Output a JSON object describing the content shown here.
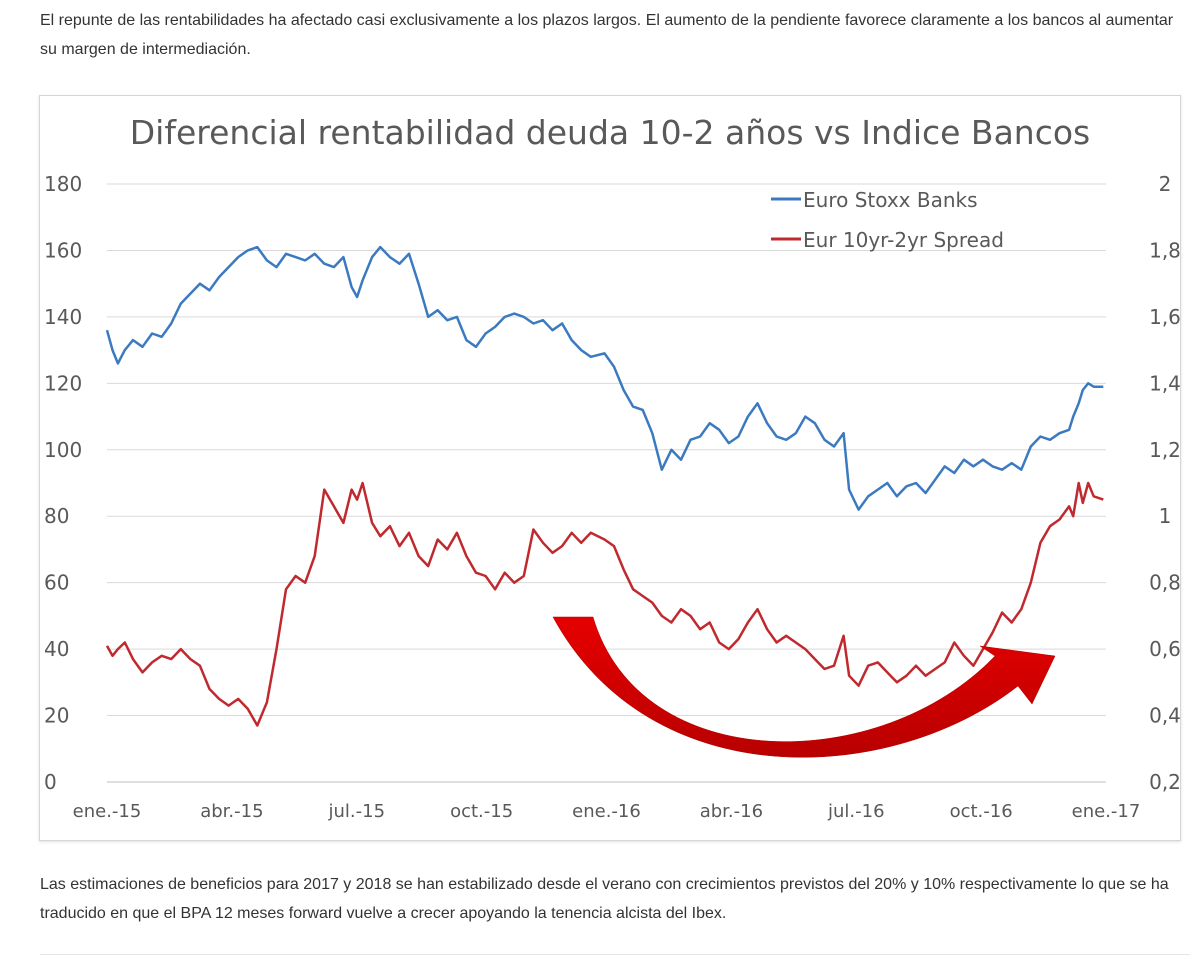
{
  "article": {
    "paragraph_1": "El repunte de las rentabilidades ha afectado casi exclusivamente a los plazos largos. El aumento de la pendiente favorece claramente a los bancos al aumentar su margen de intermediación.",
    "paragraph_2": "Las estimaciones de beneficios para 2017 y 2018 se han estabilizado desde el verano con crecimientos previstos del 20% y 10% respectivamente lo que se ha traducido en que el BPA 12 meses forward vuelve a crecer apoyando la tenencia alcista del Ibex."
  },
  "chart_data": {
    "type": "line",
    "title": "Diferencial rentabilidad deuda 10-2 años vs Indice Bancos",
    "x_tick_labels": [
      "ene.-15",
      "abr.-15",
      "jul.-15",
      "oct.-15",
      "ene.-16",
      "abr.-16",
      "jul.-16",
      "oct.-16",
      "ene.-17"
    ],
    "y_left": {
      "ylim": [
        0,
        180
      ],
      "ticks": [
        "180",
        "160",
        "140",
        "120",
        "100",
        "80",
        "60",
        "40",
        "20",
        "0"
      ]
    },
    "y_right": {
      "ylim": [
        0.2,
        2
      ],
      "ticks": [
        "2",
        "1,8",
        "1,6",
        "1,4",
        "1,2",
        "1",
        "0,8",
        "0,6",
        "0,4",
        "0,2"
      ]
    },
    "grid": "horizontal",
    "legend_placement": "top-right",
    "arrow_annotation": {
      "color": "#e60000",
      "direction": "curved-up-right"
    },
    "series": [
      {
        "name": "Euro Stoxx Banks",
        "axis": "left",
        "color": "#3c7ac0",
        "points": [
          [
            "2015-01-01",
            136
          ],
          [
            "2015-01-05",
            130
          ],
          [
            "2015-01-09",
            126
          ],
          [
            "2015-01-14",
            130
          ],
          [
            "2015-01-20",
            133
          ],
          [
            "2015-01-27",
            131
          ],
          [
            "2015-02-03",
            135
          ],
          [
            "2015-02-10",
            134
          ],
          [
            "2015-02-17",
            138
          ],
          [
            "2015-02-24",
            144
          ],
          [
            "2015-03-03",
            147
          ],
          [
            "2015-03-10",
            150
          ],
          [
            "2015-03-17",
            148
          ],
          [
            "2015-03-24",
            152
          ],
          [
            "2015-03-31",
            155
          ],
          [
            "2015-04-07",
            158
          ],
          [
            "2015-04-14",
            160
          ],
          [
            "2015-04-21",
            161
          ],
          [
            "2015-04-28",
            157
          ],
          [
            "2015-05-05",
            155
          ],
          [
            "2015-05-12",
            159
          ],
          [
            "2015-05-19",
            158
          ],
          [
            "2015-05-26",
            157
          ],
          [
            "2015-06-02",
            159
          ],
          [
            "2015-06-09",
            156
          ],
          [
            "2015-06-16",
            155
          ],
          [
            "2015-06-23",
            158
          ],
          [
            "2015-06-29",
            149
          ],
          [
            "2015-07-03",
            146
          ],
          [
            "2015-07-07",
            151
          ],
          [
            "2015-07-14",
            158
          ],
          [
            "2015-07-20",
            161
          ],
          [
            "2015-07-27",
            158
          ],
          [
            "2015-08-03",
            156
          ],
          [
            "2015-08-10",
            159
          ],
          [
            "2015-08-17",
            150
          ],
          [
            "2015-08-24",
            140
          ],
          [
            "2015-08-31",
            142
          ],
          [
            "2015-09-07",
            139
          ],
          [
            "2015-09-14",
            140
          ],
          [
            "2015-09-21",
            133
          ],
          [
            "2015-09-28",
            131
          ],
          [
            "2015-10-05",
            135
          ],
          [
            "2015-10-12",
            137
          ],
          [
            "2015-10-19",
            140
          ],
          [
            "2015-10-26",
            141
          ],
          [
            "2015-11-02",
            140
          ],
          [
            "2015-11-09",
            138
          ],
          [
            "2015-11-16",
            139
          ],
          [
            "2015-11-23",
            136
          ],
          [
            "2015-11-30",
            138
          ],
          [
            "2015-12-07",
            133
          ],
          [
            "2015-12-14",
            130
          ],
          [
            "2015-12-21",
            128
          ],
          [
            "2015-12-31",
            129
          ],
          [
            "2016-01-07",
            125
          ],
          [
            "2016-01-14",
            118
          ],
          [
            "2016-01-21",
            113
          ],
          [
            "2016-01-28",
            112
          ],
          [
            "2016-02-04",
            105
          ],
          [
            "2016-02-11",
            94
          ],
          [
            "2016-02-18",
            100
          ],
          [
            "2016-02-25",
            97
          ],
          [
            "2016-03-03",
            103
          ],
          [
            "2016-03-10",
            104
          ],
          [
            "2016-03-17",
            108
          ],
          [
            "2016-03-24",
            106
          ],
          [
            "2016-03-31",
            102
          ],
          [
            "2016-04-07",
            104
          ],
          [
            "2016-04-14",
            110
          ],
          [
            "2016-04-21",
            114
          ],
          [
            "2016-04-28",
            108
          ],
          [
            "2016-05-05",
            104
          ],
          [
            "2016-05-12",
            103
          ],
          [
            "2016-05-19",
            105
          ],
          [
            "2016-05-26",
            110
          ],
          [
            "2016-06-02",
            108
          ],
          [
            "2016-06-09",
            103
          ],
          [
            "2016-06-16",
            101
          ],
          [
            "2016-06-23",
            105
          ],
          [
            "2016-06-27",
            88
          ],
          [
            "2016-07-04",
            82
          ],
          [
            "2016-07-11",
            86
          ],
          [
            "2016-07-18",
            88
          ],
          [
            "2016-07-25",
            90
          ],
          [
            "2016-08-01",
            86
          ],
          [
            "2016-08-08",
            89
          ],
          [
            "2016-08-15",
            90
          ],
          [
            "2016-08-22",
            87
          ],
          [
            "2016-08-29",
            91
          ],
          [
            "2016-09-05",
            95
          ],
          [
            "2016-09-12",
            93
          ],
          [
            "2016-09-19",
            97
          ],
          [
            "2016-09-26",
            95
          ],
          [
            "2016-10-03",
            97
          ],
          [
            "2016-10-10",
            95
          ],
          [
            "2016-10-17",
            94
          ],
          [
            "2016-10-24",
            96
          ],
          [
            "2016-10-31",
            94
          ],
          [
            "2016-11-07",
            101
          ],
          [
            "2016-11-14",
            104
          ],
          [
            "2016-11-21",
            103
          ],
          [
            "2016-11-28",
            105
          ],
          [
            "2016-12-05",
            106
          ],
          [
            "2016-12-08",
            110
          ],
          [
            "2016-12-12",
            114
          ],
          [
            "2016-12-15",
            118
          ],
          [
            "2016-12-19",
            120
          ],
          [
            "2016-12-23",
            119
          ],
          [
            "2016-12-30",
            119
          ]
        ]
      },
      {
        "name": "Eur 10yr-2yr Spread",
        "axis": "right",
        "color": "#c0292e",
        "points": [
          [
            "2015-01-01",
            0.61
          ],
          [
            "2015-01-05",
            0.58
          ],
          [
            "2015-01-09",
            0.6
          ],
          [
            "2015-01-14",
            0.62
          ],
          [
            "2015-01-20",
            0.57
          ],
          [
            "2015-01-27",
            0.53
          ],
          [
            "2015-02-03",
            0.56
          ],
          [
            "2015-02-10",
            0.58
          ],
          [
            "2015-02-17",
            0.57
          ],
          [
            "2015-02-24",
            0.6
          ],
          [
            "2015-03-03",
            0.57
          ],
          [
            "2015-03-10",
            0.55
          ],
          [
            "2015-03-17",
            0.48
          ],
          [
            "2015-03-24",
            0.45
          ],
          [
            "2015-03-31",
            0.43
          ],
          [
            "2015-04-07",
            0.45
          ],
          [
            "2015-04-14",
            0.42
          ],
          [
            "2015-04-21",
            0.37
          ],
          [
            "2015-04-28",
            0.44
          ],
          [
            "2015-05-05",
            0.6
          ],
          [
            "2015-05-12",
            0.78
          ],
          [
            "2015-05-19",
            0.82
          ],
          [
            "2015-05-26",
            0.8
          ],
          [
            "2015-06-02",
            0.88
          ],
          [
            "2015-06-09",
            1.08
          ],
          [
            "2015-06-16",
            1.03
          ],
          [
            "2015-06-23",
            0.98
          ],
          [
            "2015-06-29",
            1.08
          ],
          [
            "2015-07-03",
            1.05
          ],
          [
            "2015-07-07",
            1.1
          ],
          [
            "2015-07-14",
            0.98
          ],
          [
            "2015-07-20",
            0.94
          ],
          [
            "2015-07-27",
            0.97
          ],
          [
            "2015-08-03",
            0.91
          ],
          [
            "2015-08-10",
            0.95
          ],
          [
            "2015-08-17",
            0.88
          ],
          [
            "2015-08-24",
            0.85
          ],
          [
            "2015-08-31",
            0.93
          ],
          [
            "2015-09-07",
            0.9
          ],
          [
            "2015-09-14",
            0.95
          ],
          [
            "2015-09-21",
            0.88
          ],
          [
            "2015-09-28",
            0.83
          ],
          [
            "2015-10-05",
            0.82
          ],
          [
            "2015-10-12",
            0.78
          ],
          [
            "2015-10-19",
            0.83
          ],
          [
            "2015-10-26",
            0.8
          ],
          [
            "2015-11-02",
            0.82
          ],
          [
            "2015-11-09",
            0.96
          ],
          [
            "2015-11-16",
            0.92
          ],
          [
            "2015-11-23",
            0.89
          ],
          [
            "2015-11-30",
            0.91
          ],
          [
            "2015-12-07",
            0.95
          ],
          [
            "2015-12-14",
            0.92
          ],
          [
            "2015-12-21",
            0.95
          ],
          [
            "2015-12-31",
            0.93
          ],
          [
            "2016-01-07",
            0.91
          ],
          [
            "2016-01-14",
            0.84
          ],
          [
            "2016-01-21",
            0.78
          ],
          [
            "2016-01-28",
            0.76
          ],
          [
            "2016-02-04",
            0.74
          ],
          [
            "2016-02-11",
            0.7
          ],
          [
            "2016-02-18",
            0.68
          ],
          [
            "2016-02-25",
            0.72
          ],
          [
            "2016-03-03",
            0.7
          ],
          [
            "2016-03-10",
            0.66
          ],
          [
            "2016-03-17",
            0.68
          ],
          [
            "2016-03-24",
            0.62
          ],
          [
            "2016-03-31",
            0.6
          ],
          [
            "2016-04-07",
            0.63
          ],
          [
            "2016-04-14",
            0.68
          ],
          [
            "2016-04-21",
            0.72
          ],
          [
            "2016-04-28",
            0.66
          ],
          [
            "2016-05-05",
            0.62
          ],
          [
            "2016-05-12",
            0.64
          ],
          [
            "2016-05-19",
            0.62
          ],
          [
            "2016-05-26",
            0.6
          ],
          [
            "2016-06-02",
            0.57
          ],
          [
            "2016-06-09",
            0.54
          ],
          [
            "2016-06-16",
            0.55
          ],
          [
            "2016-06-23",
            0.64
          ],
          [
            "2016-06-27",
            0.52
          ],
          [
            "2016-07-04",
            0.49
          ],
          [
            "2016-07-11",
            0.55
          ],
          [
            "2016-07-18",
            0.56
          ],
          [
            "2016-07-25",
            0.53
          ],
          [
            "2016-08-01",
            0.5
          ],
          [
            "2016-08-08",
            0.52
          ],
          [
            "2016-08-15",
            0.55
          ],
          [
            "2016-08-22",
            0.52
          ],
          [
            "2016-08-29",
            0.54
          ],
          [
            "2016-09-05",
            0.56
          ],
          [
            "2016-09-12",
            0.62
          ],
          [
            "2016-09-19",
            0.58
          ],
          [
            "2016-09-26",
            0.55
          ],
          [
            "2016-10-03",
            0.6
          ],
          [
            "2016-10-10",
            0.65
          ],
          [
            "2016-10-17",
            0.71
          ],
          [
            "2016-10-24",
            0.68
          ],
          [
            "2016-10-31",
            0.72
          ],
          [
            "2016-11-07",
            0.8
          ],
          [
            "2016-11-14",
            0.92
          ],
          [
            "2016-11-21",
            0.97
          ],
          [
            "2016-11-28",
            0.99
          ],
          [
            "2016-12-05",
            1.03
          ],
          [
            "2016-12-08",
            1.0
          ],
          [
            "2016-12-12",
            1.1
          ],
          [
            "2016-12-15",
            1.04
          ],
          [
            "2016-12-19",
            1.1
          ],
          [
            "2016-12-23",
            1.06
          ],
          [
            "2016-12-30",
            1.05
          ]
        ]
      }
    ]
  }
}
